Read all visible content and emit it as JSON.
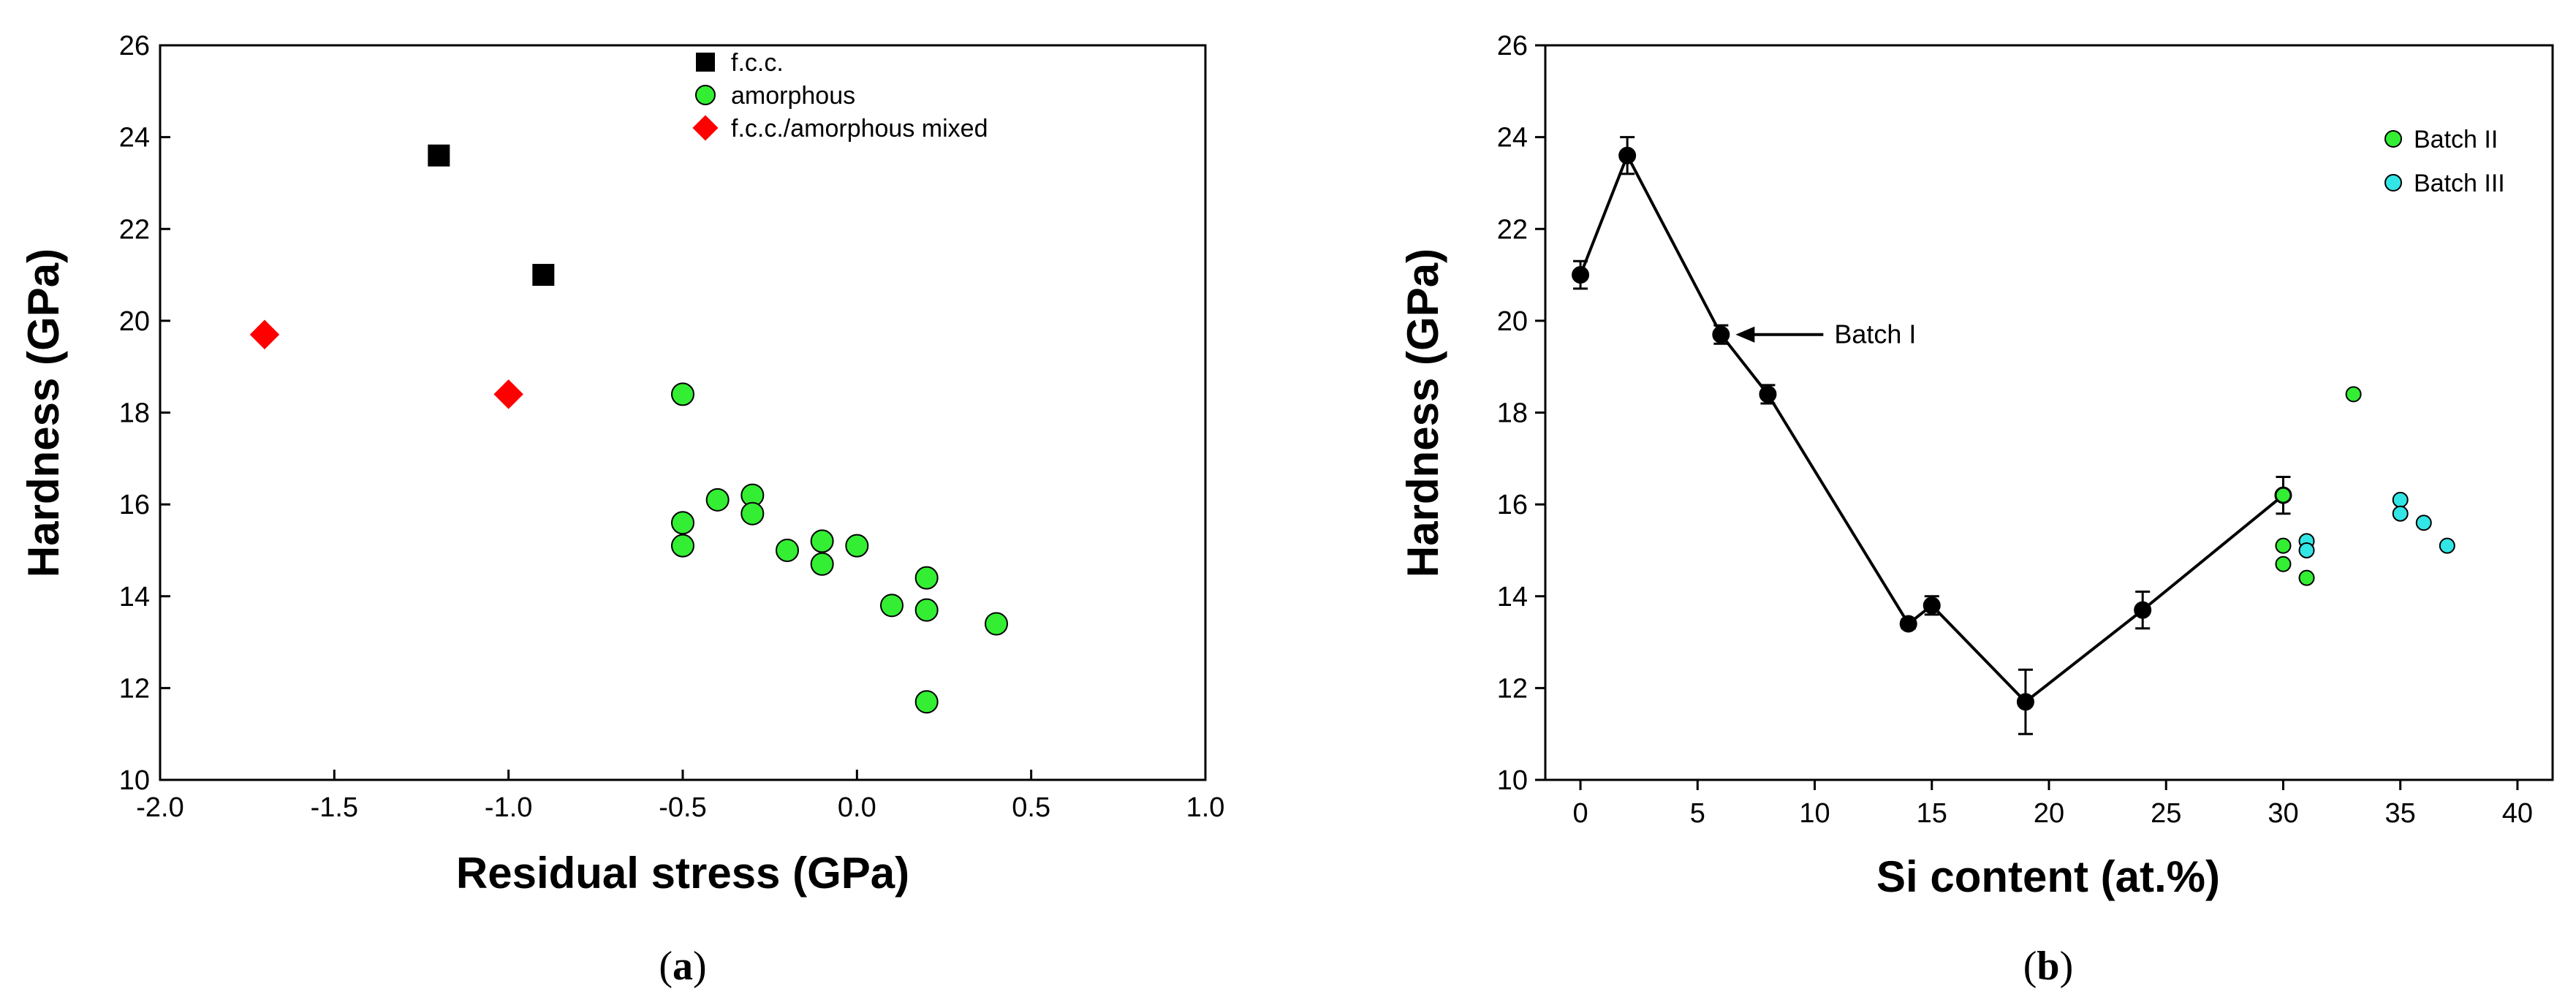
{
  "chart_data": [
    {
      "panel": "a",
      "type": "scatter",
      "caption": "a",
      "xlabel": "Residual stress (GPa)",
      "ylabel": "Hardness (GPa)",
      "xlim": [
        -2.0,
        1.0
      ],
      "ylim": [
        10,
        26
      ],
      "xticks": [
        "-2.0",
        "-1.5",
        "-1.0",
        "-0.5",
        "0.0",
        "0.5",
        "1.0"
      ],
      "yticks": [
        "10",
        "12",
        "14",
        "16",
        "18",
        "20",
        "22",
        "24",
        "26"
      ],
      "legend_position": "top-right",
      "series": [
        {
          "name": "f.c.c.",
          "marker": "square",
          "color": "#000000",
          "points": [
            [
              -1.2,
              23.6
            ],
            [
              -0.9,
              21.0
            ]
          ]
        },
        {
          "name": "amorphous",
          "marker": "circle",
          "color": "#33ee33",
          "points": [
            [
              -0.5,
              18.4
            ],
            [
              -0.5,
              15.6
            ],
            [
              -0.5,
              15.1
            ],
            [
              -0.4,
              16.1
            ],
            [
              -0.3,
              16.2
            ],
            [
              -0.3,
              15.8
            ],
            [
              -0.2,
              15.0
            ],
            [
              -0.1,
              15.2
            ],
            [
              -0.1,
              14.7
            ],
            [
              0.0,
              15.1
            ],
            [
              0.1,
              13.8
            ],
            [
              0.2,
              14.4
            ],
            [
              0.2,
              13.7
            ],
            [
              0.2,
              11.7
            ],
            [
              0.4,
              13.4
            ]
          ]
        },
        {
          "name": "f.c.c./amorphous mixed",
          "marker": "diamond",
          "color": "#ff0000",
          "points": [
            [
              -1.7,
              19.7
            ],
            [
              -1.0,
              18.4
            ]
          ]
        }
      ]
    },
    {
      "panel": "b",
      "type": "line",
      "caption": "b",
      "xlabel": "Si content (at.%)",
      "ylabel": "Hardness (GPa)",
      "xlim": [
        -1.5,
        41.5
      ],
      "ylim": [
        10,
        26
      ],
      "xticks": [
        "0",
        "5",
        "10",
        "15",
        "20",
        "25",
        "30",
        "35",
        "40"
      ],
      "yticks": [
        "10",
        "12",
        "14",
        "16",
        "18",
        "20",
        "22",
        "24",
        "26"
      ],
      "legend_position": "top-right",
      "annotation": {
        "text": "Batch I",
        "points_to": [
          6,
          19.7
        ]
      },
      "series": [
        {
          "name": "Batch I",
          "marker": "circle",
          "color": "#000000",
          "line": true,
          "points": [
            [
              0,
              21.0
            ],
            [
              2,
              23.6
            ],
            [
              6,
              19.7
            ],
            [
              8,
              18.4
            ],
            [
              14,
              13.4
            ],
            [
              15,
              13.8
            ],
            [
              19,
              11.7
            ],
            [
              24,
              13.7
            ],
            [
              30,
              16.2
            ]
          ],
          "errors": [
            0.3,
            0.4,
            0.2,
            0.2,
            0.1,
            0.2,
            0.7,
            0.4,
            0.4
          ]
        },
        {
          "name": "Batch II",
          "marker": "circle",
          "color": "#33ee33",
          "line": false,
          "points": [
            [
              30,
              16.2
            ],
            [
              30,
              15.1
            ],
            [
              30,
              14.7
            ],
            [
              31,
              14.4
            ],
            [
              33,
              18.4
            ]
          ]
        },
        {
          "name": "Batch III",
          "marker": "circle",
          "color": "#33e6e6",
          "line": false,
          "points": [
            [
              31,
              15.2
            ],
            [
              31,
              15.0
            ],
            [
              35,
              16.1
            ],
            [
              35,
              15.8
            ],
            [
              36,
              15.6
            ],
            [
              37,
              15.1
            ]
          ]
        }
      ]
    }
  ]
}
